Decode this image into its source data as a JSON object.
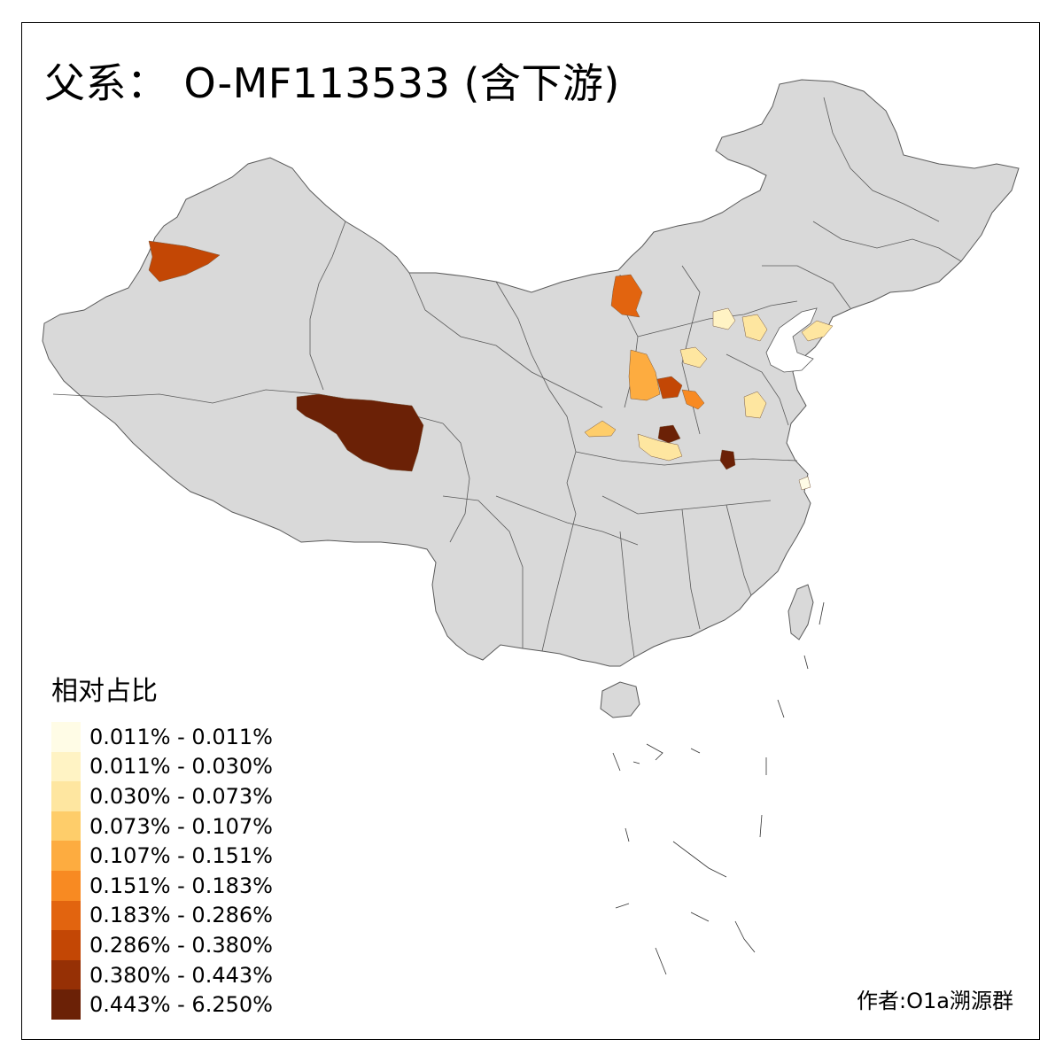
{
  "title": {
    "prefix": "父系：",
    "haplogroup": "O-MF113533 (含下游)"
  },
  "legend": {
    "title": "相对占比",
    "items": [
      {
        "label": "0.011% - 0.011%",
        "color": "#fffce6"
      },
      {
        "label": "0.011% - 0.030%",
        "color": "#fff3c4"
      },
      {
        "label": "0.030% - 0.073%",
        "color": "#fee6a0"
      },
      {
        "label": "0.073% - 0.107%",
        "color": "#fecd6a"
      },
      {
        "label": "0.107% - 0.151%",
        "color": "#fdac40"
      },
      {
        "label": "0.151% - 0.183%",
        "color": "#f88a22"
      },
      {
        "label": "0.183% - 0.286%",
        "color": "#e2640f"
      },
      {
        "label": "0.286% - 0.380%",
        "color": "#c34705"
      },
      {
        "label": "0.380% - 0.443%",
        "color": "#963005"
      },
      {
        "label": "0.443% - 6.250%",
        "color": "#6b2106"
      }
    ]
  },
  "credit": "作者:O1a溯源群",
  "colors": {
    "base_region": "#d9d9d9",
    "border": "#5a5a5a",
    "background": "#ffffff"
  }
}
